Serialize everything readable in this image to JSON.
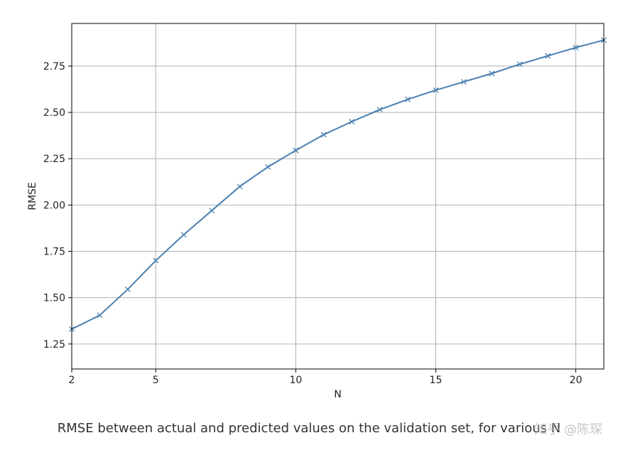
{
  "chart_data": {
    "type": "line",
    "title": "",
    "xlabel": "N",
    "ylabel": "RMSE",
    "xlim": [
      2,
      21
    ],
    "ylim": [
      1.115,
      2.98
    ],
    "x_ticks": [
      2,
      5,
      10,
      15,
      20
    ],
    "y_ticks": [
      1.25,
      1.5,
      1.75,
      2.0,
      2.25,
      2.5,
      2.75
    ],
    "y_tick_labels": [
      "1.25",
      "1.50",
      "1.75",
      "2.00",
      "2.25",
      "2.50",
      "2.75"
    ],
    "grid": true,
    "marker": "x",
    "series": [
      {
        "color": "#4a7fb0",
        "x": [
          2,
          3,
          4,
          5,
          6,
          7,
          8,
          9,
          10,
          11,
          12,
          13,
          14,
          15,
          16,
          17,
          18,
          19,
          20,
          21
        ],
        "y": [
          1.33,
          1.405,
          1.545,
          1.7,
          1.84,
          1.97,
          2.1,
          2.205,
          2.295,
          2.38,
          2.45,
          2.515,
          2.57,
          2.62,
          2.665,
          2.71,
          2.76,
          2.805,
          2.85,
          2.89
        ]
      }
    ]
  },
  "caption": "RMSE between actual and predicted values on the validation set, for various N",
  "watermark": "知乎 @陈琛"
}
